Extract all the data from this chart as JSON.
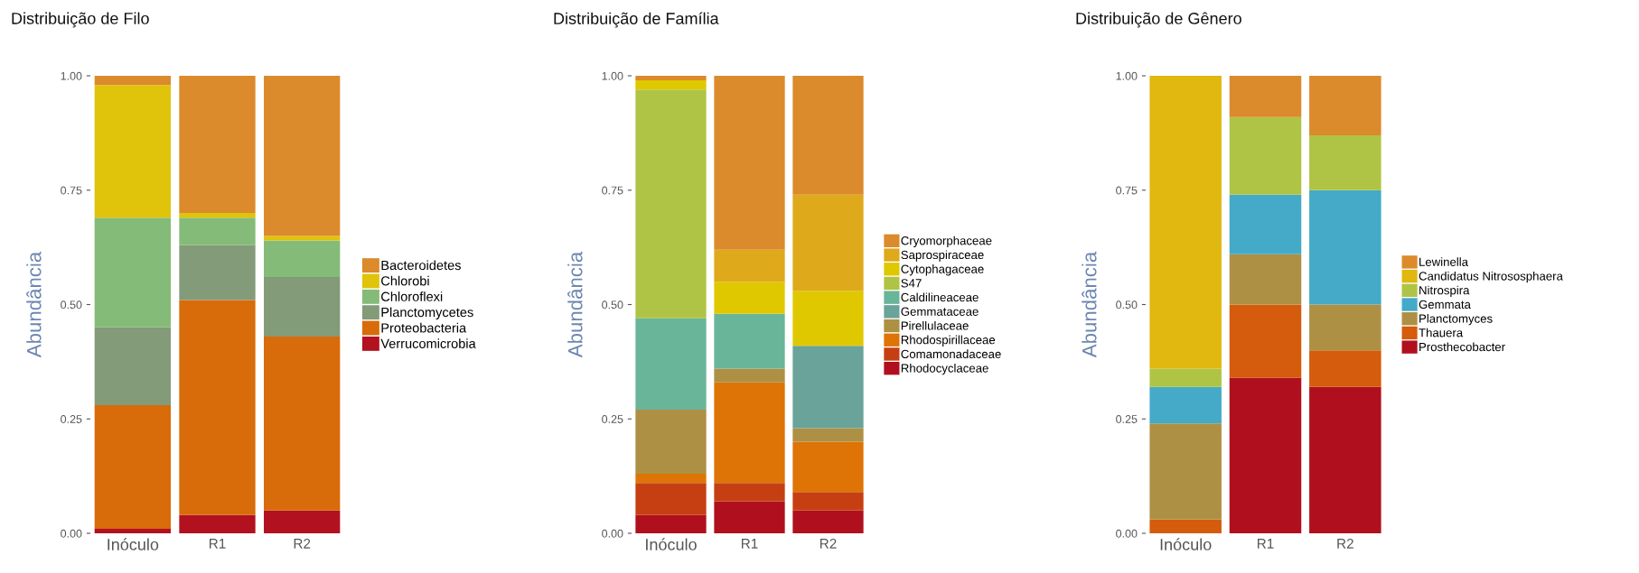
{
  "chart_data": [
    {
      "type": "bar",
      "title": "Distribuição de Filo",
      "ylabel": "Abundância",
      "stacked": true,
      "legend": "right",
      "grid": false,
      "categories": [
        "Inóculo",
        "R1",
        "R2"
      ],
      "ylim": [
        0,
        1
      ],
      "yticks": [
        {
          "value": 0,
          "label": "0.00"
        },
        {
          "value": 0.25,
          "label": "0.25"
        },
        {
          "value": 0.5,
          "label": "0.50"
        },
        {
          "value": 0.75,
          "label": "0.75"
        },
        {
          "value": 1,
          "label": "1.00"
        }
      ],
      "series": [
        {
          "name": "Verrucomicrobia",
          "color": "#b2111f",
          "values": [
            0.01,
            0.04,
            0.05
          ]
        },
        {
          "name": "Proteobacteria",
          "color": "#d86b0a",
          "values": [
            0.27,
            0.47,
            0.38
          ]
        },
        {
          "name": "Planctomycetes",
          "color": "#839b78",
          "values": [
            0.17,
            0.12,
            0.13
          ]
        },
        {
          "name": "Chloroflexi",
          "color": "#84bb78",
          "values": [
            0.24,
            0.06,
            0.08
          ]
        },
        {
          "name": "Chlorobi",
          "color": "#e0c30b",
          "values": [
            0.29,
            0.01,
            0.01
          ]
        },
        {
          "name": "Bacteroidetes",
          "color": "#db8a2c",
          "values": [
            0.02,
            0.3,
            0.35
          ]
        }
      ]
    },
    {
      "type": "bar",
      "title": "Distribuição de Família",
      "ylabel": "Abundância",
      "stacked": true,
      "legend": "right",
      "grid": false,
      "categories": [
        "Inóculo",
        "R1",
        "R2"
      ],
      "ylim": [
        0,
        1
      ],
      "yticks": [
        {
          "value": 0,
          "label": "0.00"
        },
        {
          "value": 0.25,
          "label": "0.25"
        },
        {
          "value": 0.5,
          "label": "0.50"
        },
        {
          "value": 0.75,
          "label": "0.75"
        },
        {
          "value": 1,
          "label": "1.00"
        }
      ],
      "series": [
        {
          "name": "Rhodocyclaceae",
          "color": "#b0101e",
          "values": [
            0.04,
            0.07,
            0.05
          ]
        },
        {
          "name": "Comamonadaceae",
          "color": "#c63f12",
          "values": [
            0.07,
            0.04,
            0.04
          ]
        },
        {
          "name": "Rhodospirillaceae",
          "color": "#de7406",
          "values": [
            0.02,
            0.22,
            0.11
          ]
        },
        {
          "name": "Pirellulaceae",
          "color": "#ae9044",
          "values": [
            0.14,
            0.03,
            0.03
          ]
        },
        {
          "name": "Gemmataceae",
          "color": "#69a39a",
          "values": [
            0,
            0,
            0.18
          ]
        },
        {
          "name": "Caldilineaceae",
          "color": "#69b59a",
          "values": [
            0.2,
            0.12,
            0
          ]
        },
        {
          "name": "S47",
          "color": "#afc444",
          "values": [
            0.5,
            0,
            0
          ]
        },
        {
          "name": "Cytophagaceae",
          "color": "#e0c800",
          "values": [
            0.02,
            0.07,
            0.12
          ]
        },
        {
          "name": "Saprospiraceae",
          "color": "#dfa91c",
          "values": [
            0,
            0.07,
            0.21
          ]
        },
        {
          "name": "Cryomorphaceae",
          "color": "#db8a2c",
          "values": [
            0.01,
            0.38,
            0.26
          ]
        }
      ]
    },
    {
      "type": "bar",
      "title": "Distribuição de Gênero",
      "ylabel": "Abundância",
      "stacked": true,
      "legend": "right",
      "grid": false,
      "categories": [
        "Inóculo",
        "R1",
        "R2"
      ],
      "ylim": [
        0,
        1
      ],
      "yticks": [
        {
          "value": 0,
          "label": "0.00"
        },
        {
          "value": 0.25,
          "label": "0.25"
        },
        {
          "value": 0.5,
          "label": "0.50"
        },
        {
          "value": 0.75,
          "label": "0.75"
        },
        {
          "value": 1,
          "label": "1.00"
        }
      ],
      "series": [
        {
          "name": "Prosthecobacter",
          "color": "#b0101e",
          "values": [
            0,
            0.34,
            0.32
          ]
        },
        {
          "name": "Thauera",
          "color": "#d45c0c",
          "values": [
            0.03,
            0.16,
            0.08
          ]
        },
        {
          "name": "Planctomyces",
          "color": "#ae9044",
          "values": [
            0.21,
            0.11,
            0.1
          ]
        },
        {
          "name": "Gemmata",
          "color": "#44aac8",
          "values": [
            0.08,
            0.13,
            0.25
          ]
        },
        {
          "name": "Nitrospira",
          "color": "#afc444",
          "values": [
            0.04,
            0.17,
            0.12
          ]
        },
        {
          "name": "Candidatus Nitrososphaera",
          "color": "#e0b80f",
          "values": [
            0.64,
            0,
            0
          ]
        },
        {
          "name": "Lewinella",
          "color": "#db8a2c",
          "values": [
            0,
            0.09,
            0.13
          ]
        }
      ]
    }
  ]
}
